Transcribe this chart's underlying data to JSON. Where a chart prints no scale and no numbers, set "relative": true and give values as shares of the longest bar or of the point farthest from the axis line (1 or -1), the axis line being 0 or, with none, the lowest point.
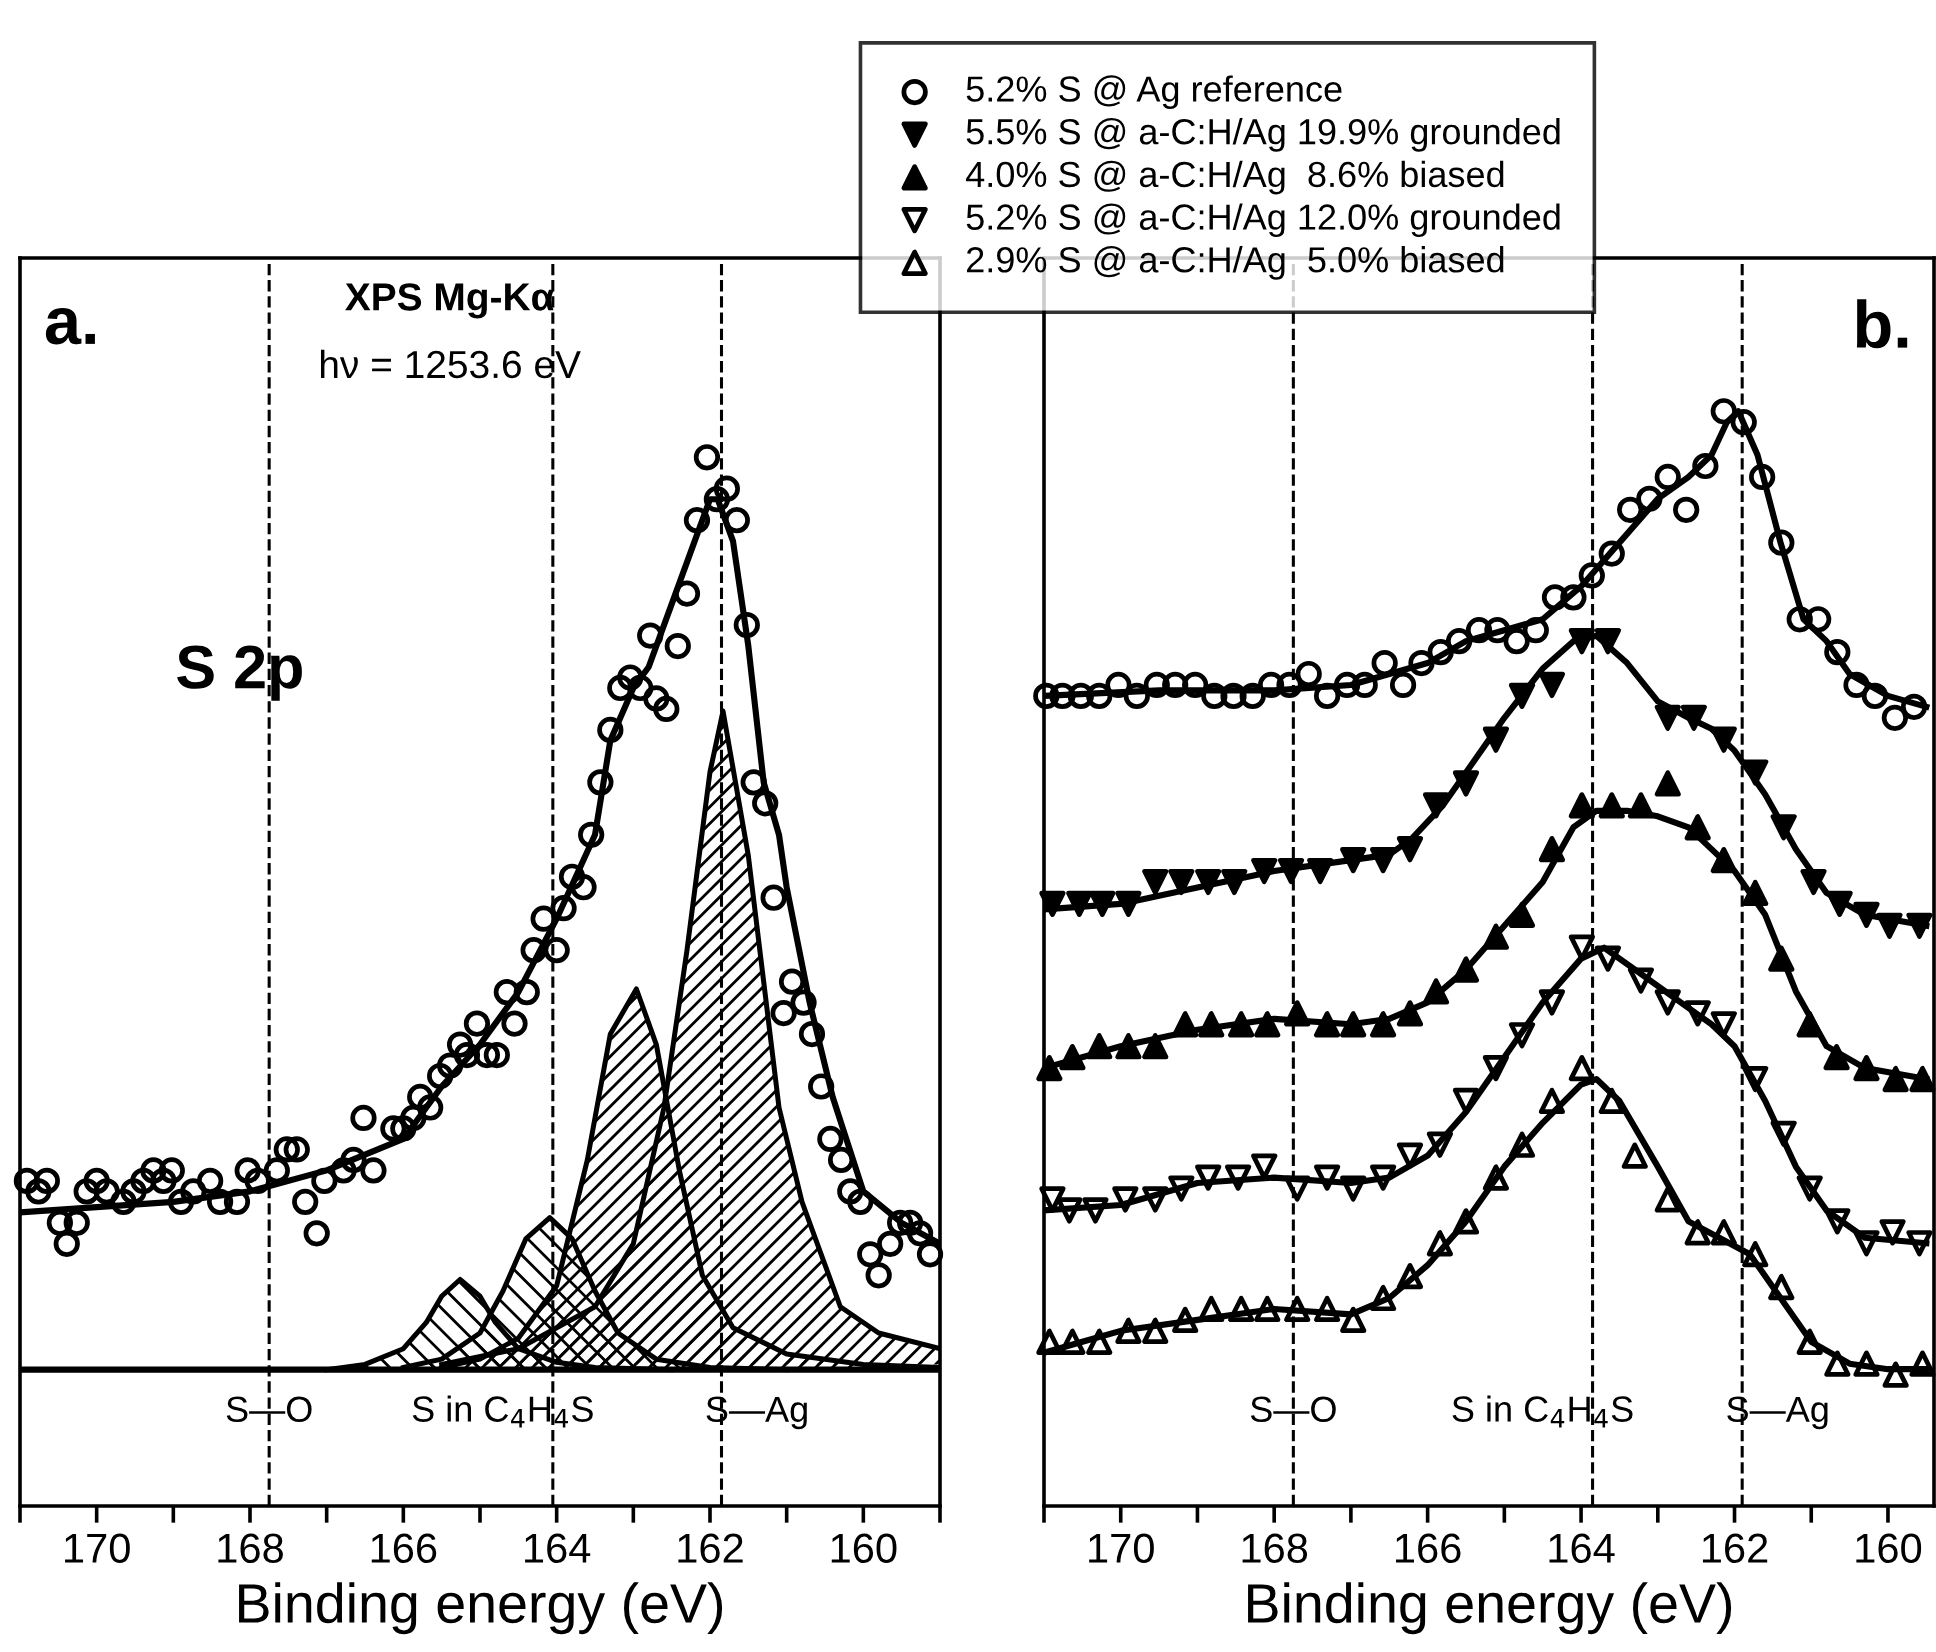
{
  "chart_data": [
    {
      "type": "scatter",
      "relative": true,
      "xlabel": "Binding energy (eV)",
      "xlim": [
        171,
        159
      ],
      "xticks": [
        {
          "value": 171,
          "label": null
        },
        170,
        {
          "value": 169,
          "label": null
        },
        168,
        {
          "value": 167,
          "label": null
        },
        166,
        {
          "value": 165,
          "label": null
        },
        164,
        {
          "value": 163,
          "label": null
        },
        162,
        {
          "value": 161,
          "label": null
        },
        160,
        {
          "value": 159,
          "label": null
        }
      ],
      "annotations": [
        "a.",
        "XPS Mg-Kα",
        "hν = 1253.6 eV",
        "S 2p"
      ],
      "ref_lines": [
        {
          "axis": "x",
          "value": 167.75,
          "label": "S—O",
          "line_style": "dashed",
          "color": "#000000"
        },
        {
          "axis": "x",
          "value": 164.05,
          "label": "S in C$_{4}$H$_{4}$S",
          "line_style": "dashed",
          "color": "#000000"
        },
        {
          "axis": "x",
          "value": 161.85,
          "label": "S—Ag",
          "line_style": "dashed",
          "color": "#000000"
        }
      ],
      "series": [
        {
          "marker": "circle_open",
          "color": "#000000",
          "x": [
            170.91,
            170.65,
            170.76,
            170.48,
            170.39,
            170.26,
            170.13,
            170.0,
            169.87,
            169.65,
            169.52,
            169.39,
            169.26,
            169.13,
            169.02,
            168.9,
            168.74,
            168.52,
            168.39,
            168.17,
            168.03,
            167.9,
            167.65,
            167.52,
            167.39,
            167.28,
            167.13,
            167.03,
            166.78,
            166.65,
            166.52,
            166.39,
            166.13,
            166.0,
            165.87,
            165.78,
            165.65,
            165.52,
            165.39,
            165.26,
            165.17,
            165.04,
            164.91,
            164.78,
            164.65,
            164.55,
            164.39,
            164.3,
            164.17,
            164.0,
            163.91,
            163.8,
            163.65,
            163.55,
            163.43,
            163.3,
            163.17,
            163.04,
            162.91,
            162.78,
            162.7,
            162.57,
            162.42,
            162.3,
            162.17,
            162.04,
            161.91,
            161.78,
            161.65,
            161.52,
            161.43,
            161.28,
            161.17,
            161.04,
            160.93,
            160.78,
            160.67,
            160.55,
            160.43,
            160.29,
            160.17,
            160.04,
            159.91,
            159.8,
            159.65,
            159.52,
            159.39,
            159.26,
            159.13
          ],
          "values": [
            0.31,
            0.31,
            0.3,
            0.27,
            0.25,
            0.27,
            0.3,
            0.31,
            0.3,
            0.29,
            0.3,
            0.31,
            0.32,
            0.31,
            0.32,
            0.29,
            0.3,
            0.31,
            0.29,
            0.29,
            0.32,
            0.31,
            0.32,
            0.34,
            0.34,
            0.29,
            0.26,
            0.31,
            0.32,
            0.33,
            0.37,
            0.32,
            0.36,
            0.36,
            0.37,
            0.39,
            0.38,
            0.41,
            0.42,
            0.44,
            0.43,
            0.46,
            0.43,
            0.43,
            0.49,
            0.46,
            0.49,
            0.53,
            0.56,
            0.53,
            0.57,
            0.6,
            0.59,
            0.64,
            0.69,
            0.74,
            0.78,
            0.79,
            0.78,
            0.83,
            0.77,
            0.76,
            0.82,
            0.87,
            0.94,
            1.0,
            0.96,
            0.97,
            0.94,
            0.84,
            0.69,
            0.67,
            0.58,
            0.47,
            0.5,
            0.48,
            0.45,
            0.4,
            0.35,
            0.33,
            0.3,
            0.29,
            0.24,
            0.22,
            0.25,
            0.27,
            0.27,
            0.26,
            0.24
          ]
        },
        {
          "type": "line",
          "line_style": "solid",
          "color": "#000000",
          "x": [
            171,
            169,
            168,
            167,
            166,
            165.5,
            165,
            164.5,
            164,
            163.5,
            163.3,
            163.0,
            162.8,
            162.5,
            162.2,
            162.0,
            161.9,
            161.7,
            161.5,
            161.3,
            161.1,
            161.0,
            160.7,
            160.4,
            160.0,
            159.5,
            159.0
          ],
          "values": [
            0.28,
            0.29,
            0.3,
            0.32,
            0.35,
            0.4,
            0.44,
            0.49,
            0.56,
            0.64,
            0.73,
            0.78,
            0.8,
            0.86,
            0.92,
            0.96,
            0.96,
            0.92,
            0.82,
            0.69,
            0.64,
            0.59,
            0.48,
            0.39,
            0.3,
            0.27,
            0.25
          ]
        },
        {
          "type": "area",
          "color": "#000000",
          "x": [
            167.0,
            166.5,
            166.0,
            165.7,
            165.5,
            165.26,
            165.0,
            164.8,
            164.5,
            164.0,
            163.5,
            162.5
          ],
          "values": [
            0.13,
            0.135,
            0.15,
            0.175,
            0.2,
            0.216,
            0.2,
            0.175,
            0.15,
            0.137,
            0.132,
            0.13
          ]
        },
        {
          "type": "area",
          "color": "#000000",
          "x": [
            166.0,
            165.5,
            165.0,
            164.7,
            164.4,
            164.09,
            163.8,
            163.5,
            163.2,
            162.7,
            162.0,
            161.0
          ],
          "values": [
            0.132,
            0.14,
            0.165,
            0.205,
            0.255,
            0.275,
            0.255,
            0.205,
            0.165,
            0.14,
            0.132,
            0.13
          ]
        },
        {
          "type": "area",
          "color": "#000000",
          "x": [
            165.5,
            165.0,
            164.5,
            164.0,
            163.6,
            163.3,
            162.96,
            162.7,
            162.4,
            162.1,
            161.7,
            161.0,
            160.0,
            159.0
          ],
          "values": [
            0.132,
            0.14,
            0.16,
            0.21,
            0.33,
            0.45,
            0.493,
            0.44,
            0.32,
            0.22,
            0.17,
            0.145,
            0.135,
            0.132
          ]
        },
        {
          "type": "area",
          "color": "#000000",
          "x": [
            165.5,
            164.5,
            163.5,
            163.0,
            162.6,
            162.3,
            162.0,
            161.83,
            161.5,
            161.3,
            161.1,
            160.8,
            160.5,
            160.3,
            159.8,
            159.0
          ],
          "values": [
            0.135,
            0.15,
            0.19,
            0.25,
            0.38,
            0.53,
            0.7,
            0.758,
            0.62,
            0.5,
            0.38,
            0.29,
            0.23,
            0.19,
            0.165,
            0.15
          ]
        },
        {
          "type": "line",
          "line_style": "solid",
          "color": "#000000",
          "x": [
            171,
            159
          ],
          "values": [
            0.13,
            0.13
          ]
        }
      ]
    },
    {
      "type": "scatter",
      "relative": true,
      "xlabel": "Binding energy (eV)",
      "xlim": [
        171,
        159.4
      ],
      "legend": "top",
      "xticks": [
        {
          "value": 171,
          "label": null
        },
        170,
        {
          "value": 169,
          "label": null
        },
        168,
        {
          "value": 167,
          "label": null
        },
        166,
        {
          "value": 165,
          "label": null
        },
        164,
        {
          "value": 163,
          "label": null
        },
        162,
        {
          "value": 161,
          "label": null
        },
        160
      ],
      "annotations": [
        "b."
      ],
      "ref_lines": [
        {
          "axis": "x",
          "value": 167.75,
          "label": "S—O",
          "line_style": "dashed",
          "color": "#000000"
        },
        {
          "axis": "x",
          "value": 163.85,
          "label": "S in C$_{4}$H$_{4}$S",
          "line_style": "dashed",
          "color": "#000000"
        },
        {
          "axis": "x",
          "value": 161.9,
          "label": "S—Ag",
          "line_style": "dashed",
          "color": "#000000"
        }
      ],
      "series": [
        {
          "name": "5.2% S @ Ag reference",
          "marker": "circle_open",
          "color": "#000000",
          "x": [
            170.97,
            170.76,
            170.52,
            170.28,
            170.03,
            169.79,
            169.53,
            169.29,
            169.03,
            168.78,
            168.53,
            168.28,
            168.04,
            167.8,
            167.55,
            167.31,
            167.05,
            166.82,
            166.56,
            166.32,
            166.08,
            165.83,
            165.59,
            165.33,
            165.09,
            164.84,
            164.59,
            164.34,
            164.1,
            163.86,
            163.6,
            163.36,
            163.11,
            162.87,
            162.63,
            162.38,
            162.14,
            161.88,
            161.64,
            161.39,
            161.15,
            160.91,
            160.66,
            160.41,
            160.17,
            159.91,
            159.66
          ],
          "values": [
            0.74,
            0.74,
            0.74,
            0.74,
            0.75,
            0.74,
            0.75,
            0.75,
            0.75,
            0.74,
            0.74,
            0.74,
            0.75,
            0.75,
            0.76,
            0.74,
            0.75,
            0.75,
            0.77,
            0.75,
            0.77,
            0.78,
            0.79,
            0.8,
            0.8,
            0.79,
            0.8,
            0.83,
            0.83,
            0.85,
            0.87,
            0.91,
            0.92,
            0.94,
            0.91,
            0.95,
            1.0,
            0.99,
            0.94,
            0.88,
            0.81,
            0.81,
            0.78,
            0.75,
            0.74,
            0.72,
            0.73
          ]
        },
        {
          "name": "5.5% S @ a-C:H/Ag 19.9% grounded",
          "marker": "triangle_down",
          "color": "#000000",
          "x": [
            170.89,
            170.54,
            170.24,
            169.9,
            169.55,
            169.21,
            168.86,
            168.52,
            168.13,
            167.78,
            167.4,
            166.97,
            166.58,
            166.23,
            165.89,
            165.5,
            165.11,
            164.77,
            164.38,
            163.99,
            163.65,
            162.87,
            162.53,
            162.14,
            161.73,
            161.36,
            160.97,
            160.63,
            160.28,
            159.98,
            159.59
          ],
          "values": [
            0.55,
            0.55,
            0.55,
            0.55,
            0.57,
            0.57,
            0.57,
            0.57,
            0.58,
            0.58,
            0.58,
            0.59,
            0.59,
            0.6,
            0.64,
            0.66,
            0.7,
            0.74,
            0.75,
            0.79,
            0.79,
            0.72,
            0.72,
            0.7,
            0.67,
            0.62,
            0.57,
            0.55,
            0.54,
            0.53,
            0.53
          ]
        },
        {
          "name": "4.0% S @ a-C:H/Ag  8.6% biased",
          "marker": "triangle",
          "color": "#000000",
          "x": [
            170.93,
            170.63,
            170.28,
            169.9,
            169.55,
            169.16,
            168.82,
            168.43,
            168.09,
            167.7,
            167.31,
            166.97,
            166.58,
            166.23,
            165.89,
            165.5,
            165.11,
            164.77,
            164.38,
            163.99,
            163.6,
            163.22,
            162.87,
            162.48,
            162.14,
            161.73,
            161.39,
            161.02,
            160.67,
            160.28,
            159.9,
            159.55
          ],
          "values": [
            0.4,
            0.41,
            0.42,
            0.42,
            0.42,
            0.44,
            0.44,
            0.44,
            0.44,
            0.45,
            0.44,
            0.44,
            0.44,
            0.45,
            0.47,
            0.49,
            0.52,
            0.54,
            0.6,
            0.64,
            0.64,
            0.64,
            0.66,
            0.62,
            0.59,
            0.56,
            0.5,
            0.44,
            0.41,
            0.4,
            0.39,
            0.39
          ]
        },
        {
          "name": "5.2% S @ a-C:H/Ag 12.0% grounded",
          "marker": "triangle_down_open",
          "color": "#000000",
          "x": [
            170.89,
            170.67,
            170.33,
            169.94,
            169.55,
            169.21,
            168.86,
            168.47,
            168.13,
            167.7,
            167.31,
            166.97,
            166.58,
            166.23,
            165.84,
            165.5,
            165.11,
            164.77,
            164.38,
            163.99,
            163.65,
            163.22,
            162.87,
            162.48,
            162.14,
            161.73,
            161.36,
            161.02,
            160.66,
            160.28,
            159.94,
            159.59
          ],
          "values": [
            0.28,
            0.27,
            0.27,
            0.28,
            0.28,
            0.29,
            0.3,
            0.3,
            0.31,
            0.29,
            0.3,
            0.29,
            0.3,
            0.32,
            0.33,
            0.37,
            0.4,
            0.43,
            0.46,
            0.51,
            0.5,
            0.48,
            0.46,
            0.45,
            0.44,
            0.39,
            0.34,
            0.29,
            0.26,
            0.24,
            0.25,
            0.24
          ]
        },
        {
          "name": "2.9% S @ a-C:H/Ag  5.0% biased",
          "marker": "triangle_open",
          "color": "#000000",
          "x": [
            170.93,
            170.63,
            170.28,
            169.9,
            169.55,
            169.16,
            168.82,
            168.43,
            168.09,
            167.7,
            167.31,
            166.97,
            166.58,
            166.23,
            165.84,
            165.5,
            165.11,
            164.77,
            164.38,
            163.99,
            163.6,
            163.3,
            162.87,
            162.48,
            162.14,
            161.73,
            161.39,
            161.02,
            160.66,
            160.28,
            159.9,
            159.55
          ],
          "values": [
            0.15,
            0.15,
            0.15,
            0.16,
            0.16,
            0.17,
            0.18,
            0.18,
            0.18,
            0.18,
            0.18,
            0.17,
            0.19,
            0.21,
            0.24,
            0.26,
            0.3,
            0.33,
            0.37,
            0.4,
            0.37,
            0.32,
            0.28,
            0.25,
            0.25,
            0.23,
            0.2,
            0.15,
            0.13,
            0.13,
            0.12,
            0.13
          ]
        },
        {
          "type": "line",
          "line_style": "solid",
          "color": "#000000",
          "x": [
            171,
            169.5,
            168,
            167,
            166.5,
            166,
            165.5,
            165,
            164.5,
            164,
            163.5,
            163,
            162.6,
            162.3,
            162.1,
            161.95,
            161.7,
            161.4,
            161.1,
            160.8,
            160.5,
            160,
            159.5
          ],
          "values": [
            0.74,
            0.745,
            0.745,
            0.75,
            0.76,
            0.77,
            0.79,
            0.8,
            0.81,
            0.84,
            0.88,
            0.92,
            0.94,
            0.96,
            0.99,
            1.0,
            0.96,
            0.88,
            0.81,
            0.79,
            0.76,
            0.74,
            0.73
          ]
        },
        {
          "type": "line",
          "line_style": "solid",
          "color": "#000000",
          "x": [
            171,
            170,
            169,
            168,
            167,
            166.5,
            166.2,
            165.8,
            165.4,
            165,
            164.5,
            164.1,
            163.8,
            163.4,
            163,
            162.6,
            162.3,
            162,
            161.6,
            161.2,
            160.8,
            160.3,
            159.5
          ],
          "values": [
            0.545,
            0.55,
            0.565,
            0.58,
            0.59,
            0.595,
            0.61,
            0.64,
            0.68,
            0.72,
            0.765,
            0.79,
            0.795,
            0.77,
            0.735,
            0.72,
            0.71,
            0.69,
            0.65,
            0.6,
            0.56,
            0.54,
            0.53
          ]
        },
        {
          "type": "line",
          "line_style": "solid",
          "color": "#000000",
          "x": [
            171,
            170,
            169,
            168,
            167,
            166.5,
            166,
            165.5,
            165,
            164.5,
            164.1,
            163.8,
            163.4,
            163,
            162.6,
            162.3,
            162,
            161.6,
            161.2,
            160.8,
            160.3,
            159.5
          ],
          "values": [
            0.4,
            0.42,
            0.435,
            0.445,
            0.44,
            0.445,
            0.46,
            0.49,
            0.53,
            0.57,
            0.62,
            0.635,
            0.635,
            0.63,
            0.62,
            0.6,
            0.58,
            0.54,
            0.47,
            0.42,
            0.4,
            0.39
          ]
        },
        {
          "type": "line",
          "line_style": "solid",
          "color": "#000000",
          "x": [
            171,
            170,
            169,
            168,
            167,
            166.5,
            166,
            165.5,
            165,
            164.5,
            164,
            163.7,
            163.3,
            162.8,
            162.3,
            162,
            161.6,
            161.2,
            160.8,
            160.3,
            159.5
          ],
          "values": [
            0.27,
            0.275,
            0.295,
            0.3,
            0.295,
            0.3,
            0.32,
            0.36,
            0.41,
            0.46,
            0.5,
            0.51,
            0.49,
            0.465,
            0.44,
            0.42,
            0.37,
            0.31,
            0.27,
            0.245,
            0.24
          ]
        },
        {
          "type": "line",
          "line_style": "solid",
          "color": "#000000",
          "x": [
            171,
            170.5,
            170,
            169,
            168,
            167,
            166.5,
            166,
            165.5,
            165,
            164.5,
            164,
            163.8,
            163.5,
            163,
            162.6,
            162.2,
            161.8,
            161.4,
            161,
            160.5,
            160,
            159.5
          ],
          "values": [
            0.14,
            0.15,
            0.16,
            0.17,
            0.18,
            0.175,
            0.19,
            0.22,
            0.26,
            0.31,
            0.35,
            0.385,
            0.39,
            0.37,
            0.31,
            0.26,
            0.245,
            0.23,
            0.19,
            0.15,
            0.13,
            0.125,
            0.125
          ]
        }
      ]
    }
  ]
}
